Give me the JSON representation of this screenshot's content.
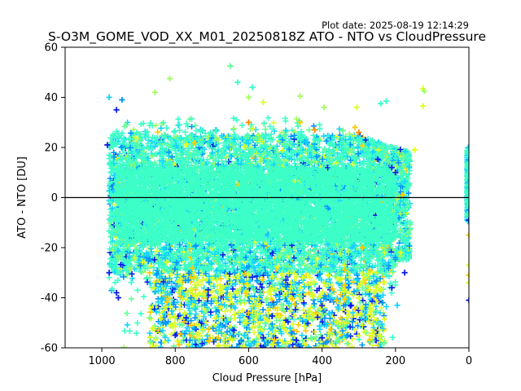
{
  "chart_data": {
    "type": "scatter",
    "marker": "plus",
    "title": "S-O3M_GOME_VOD_XX_M01_20250818Z ATO - NTO vs CloudPressure",
    "plot_date": "Plot date: 2025-08-19 12:14:29",
    "xlabel": "Cloud Pressure [hPa]",
    "ylabel": "ATO - NTO [DU]",
    "xlim": [
      1100,
      0
    ],
    "ylim": [
      -60,
      60
    ],
    "x_ticks": [
      1000,
      800,
      600,
      400,
      200,
      0
    ],
    "y_ticks": [
      -60,
      -40,
      -20,
      0,
      20,
      40,
      60
    ],
    "grid": false,
    "reference_line_y": 0,
    "colors": [
      "#0a1ee6",
      "#0096ff",
      "#14d2ff",
      "#3cffc8",
      "#64ff96",
      "#a0ff5a",
      "#dcff28",
      "#ffc800",
      "#ff8c00"
    ],
    "point_cloud": {
      "x_range": [
        160,
        980
      ],
      "core_y_range": [
        -30,
        25
      ],
      "outer_y_range": [
        -60,
        53
      ],
      "dominant_color": "#3cffc8"
    },
    "outliers": [
      {
        "x": 980,
        "y": 40,
        "c": "#14d2ff"
      },
      {
        "x": 960,
        "y": 35,
        "c": "#0a1ee6"
      },
      {
        "x": 945,
        "y": 39,
        "c": "#0096ff"
      },
      {
        "x": 855,
        "y": 42,
        "c": "#a0ff5a"
      },
      {
        "x": 815,
        "y": 47.5,
        "c": "#a0ff5a"
      },
      {
        "x": 650,
        "y": 52.5,
        "c": "#64ff96"
      },
      {
        "x": 630,
        "y": 46,
        "c": "#3cffc8"
      },
      {
        "x": 590,
        "y": 44,
        "c": "#3cffc8"
      },
      {
        "x": 600,
        "y": 40,
        "c": "#a0ff5a"
      },
      {
        "x": 560,
        "y": 38,
        "c": "#dcff28"
      },
      {
        "x": 460,
        "y": 40.5,
        "c": "#a0ff5a"
      },
      {
        "x": 395,
        "y": 36,
        "c": "#a0ff5a"
      },
      {
        "x": 305,
        "y": 36,
        "c": "#dcff28"
      },
      {
        "x": 240,
        "y": 37.5,
        "c": "#3cffc8"
      },
      {
        "x": 225,
        "y": 38.5,
        "c": "#3cffc8"
      },
      {
        "x": 125,
        "y": 43.5,
        "c": "#dcff28"
      },
      {
        "x": 122,
        "y": 42.5,
        "c": "#a0ff5a"
      },
      {
        "x": 125,
        "y": 36.5,
        "c": "#dcff28"
      },
      {
        "x": 148,
        "y": 19,
        "c": "#dcff28"
      },
      {
        "x": 210,
        "y": 12,
        "c": "#0a1ee6"
      },
      {
        "x": 200,
        "y": 10,
        "c": "#0a1ee6"
      },
      {
        "x": 180,
        "y": 1,
        "c": "#ffc800"
      },
      {
        "x": 985,
        "y": 21,
        "c": "#0a1ee6"
      },
      {
        "x": 960,
        "y": -38,
        "c": "#0a1ee6"
      },
      {
        "x": 955,
        "y": -40,
        "c": "#0a1ee6"
      },
      {
        "x": 980,
        "y": -30,
        "c": "#0a1ee6"
      },
      {
        "x": 870,
        "y": -48,
        "c": "#64ff96"
      },
      {
        "x": 860,
        "y": -52,
        "c": "#dcff28"
      },
      {
        "x": 800,
        "y": -55,
        "c": "#0a1ee6"
      },
      {
        "x": 760,
        "y": -57,
        "c": "#0096ff"
      },
      {
        "x": 640,
        "y": -53,
        "c": "#0a1ee6"
      },
      {
        "x": 620,
        "y": -57,
        "c": "#0096ff"
      },
      {
        "x": 560,
        "y": -56,
        "c": "#0a1ee6"
      },
      {
        "x": 520,
        "y": -58,
        "c": "#0096ff"
      },
      {
        "x": 470,
        "y": -57,
        "c": "#0a1ee6"
      },
      {
        "x": 400,
        "y": -56,
        "c": "#0a1ee6"
      },
      {
        "x": 330,
        "y": -55,
        "c": "#0096ff"
      },
      {
        "x": 235,
        "y": -42,
        "c": "#0096ff"
      },
      {
        "x": 210,
        "y": -36,
        "c": "#0a1ee6"
      },
      {
        "x": 195,
        "y": -43,
        "c": "#14d2ff"
      },
      {
        "x": 230,
        "y": -58,
        "c": "#64ff96"
      },
      {
        "x": 300,
        "y": -40,
        "c": "#dcff28"
      },
      {
        "x": 340,
        "y": -35,
        "c": "#ffc800"
      },
      {
        "x": 270,
        "y": -29,
        "c": "#ffc800"
      },
      {
        "x": 290,
        "y": -20,
        "c": "#ffc800"
      },
      {
        "x": 185,
        "y": -22,
        "c": "#dcff28"
      },
      {
        "x": 175,
        "y": -30,
        "c": "#0a1ee6"
      },
      {
        "x": 310,
        "y": 28,
        "c": "#ffc800"
      },
      {
        "x": 300,
        "y": 26,
        "c": "#ff8c00"
      },
      {
        "x": 420,
        "y": 27,
        "c": "#ff8c00"
      },
      {
        "x": 460,
        "y": 30,
        "c": "#ffc800"
      },
      {
        "x": 600,
        "y": 30,
        "c": "#ff8c00"
      }
    ],
    "right_edge_points": [
      {
        "x": 0,
        "y": 20,
        "c": "#14d2ff"
      },
      {
        "x": 0,
        "y": 15,
        "c": "#0096ff"
      },
      {
        "x": 0,
        "y": 10,
        "c": "#3cffc8"
      },
      {
        "x": 0,
        "y": 5,
        "c": "#3cffc8"
      },
      {
        "x": 0,
        "y": 0,
        "c": "#3cffc8"
      },
      {
        "x": 0,
        "y": -5,
        "c": "#0096ff"
      },
      {
        "x": 0,
        "y": -9,
        "c": "#0a1ee6"
      },
      {
        "x": 0,
        "y": -15,
        "c": "#ffc800"
      },
      {
        "x": 0,
        "y": -27,
        "c": "#dcff28"
      },
      {
        "x": 0,
        "y": -31,
        "c": "#ffc800"
      },
      {
        "x": 0,
        "y": -34,
        "c": "#dcff28"
      },
      {
        "x": 0,
        "y": -41,
        "c": "#0a1ee6"
      }
    ]
  }
}
